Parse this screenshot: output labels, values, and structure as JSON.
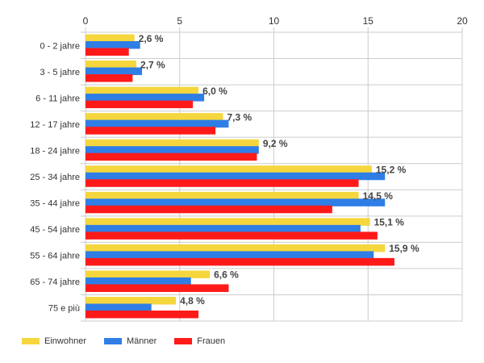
{
  "chart_data": {
    "type": "bar",
    "orientation": "horizontal",
    "categories": [
      "0 - 2 jahre",
      "3 - 5 jahre",
      "6 - 11 jahre",
      "12 - 17 jahre",
      "18 - 24 jahre",
      "25 - 34 jahre",
      "35 - 44 jahre",
      "45 - 54 jahre",
      "55 - 64 jahre",
      "65 - 74 jahre",
      "75 e più"
    ],
    "series": [
      {
        "name": "Einwohner",
        "color": "#f5d63d",
        "values": [
          2.6,
          2.7,
          6.0,
          7.3,
          9.2,
          15.2,
          14.5,
          15.1,
          15.9,
          6.6,
          4.8
        ]
      },
      {
        "name": "Männer",
        "color": "#2f7ee6",
        "values": [
          2.9,
          3.0,
          6.3,
          7.6,
          9.2,
          15.9,
          15.9,
          14.6,
          15.3,
          5.6,
          3.5
        ]
      },
      {
        "name": "Frauen",
        "color": "#ff1a1a",
        "values": [
          2.3,
          2.5,
          5.7,
          6.9,
          9.1,
          14.5,
          13.1,
          15.5,
          16.4,
          7.6,
          6.0
        ]
      }
    ],
    "data_labels": [
      "2,6 %",
      "2,7 %",
      "6,0 %",
      "7,3 %",
      "9,2 %",
      "15,2 %",
      "14,5 %",
      "15,1 %",
      "15,9 %",
      "6,6 %",
      "4,8 %"
    ],
    "xlim": [
      0,
      20
    ],
    "xticks": [
      "0",
      "5",
      "10",
      "15",
      "20"
    ],
    "grid": true,
    "legend": "bottom-left"
  },
  "legend": {
    "items": [
      {
        "label": "Einwohner",
        "color": "#f5d63d"
      },
      {
        "label": "Männer",
        "color": "#2f7ee6"
      },
      {
        "label": "Frauen",
        "color": "#ff1a1a"
      }
    ]
  }
}
